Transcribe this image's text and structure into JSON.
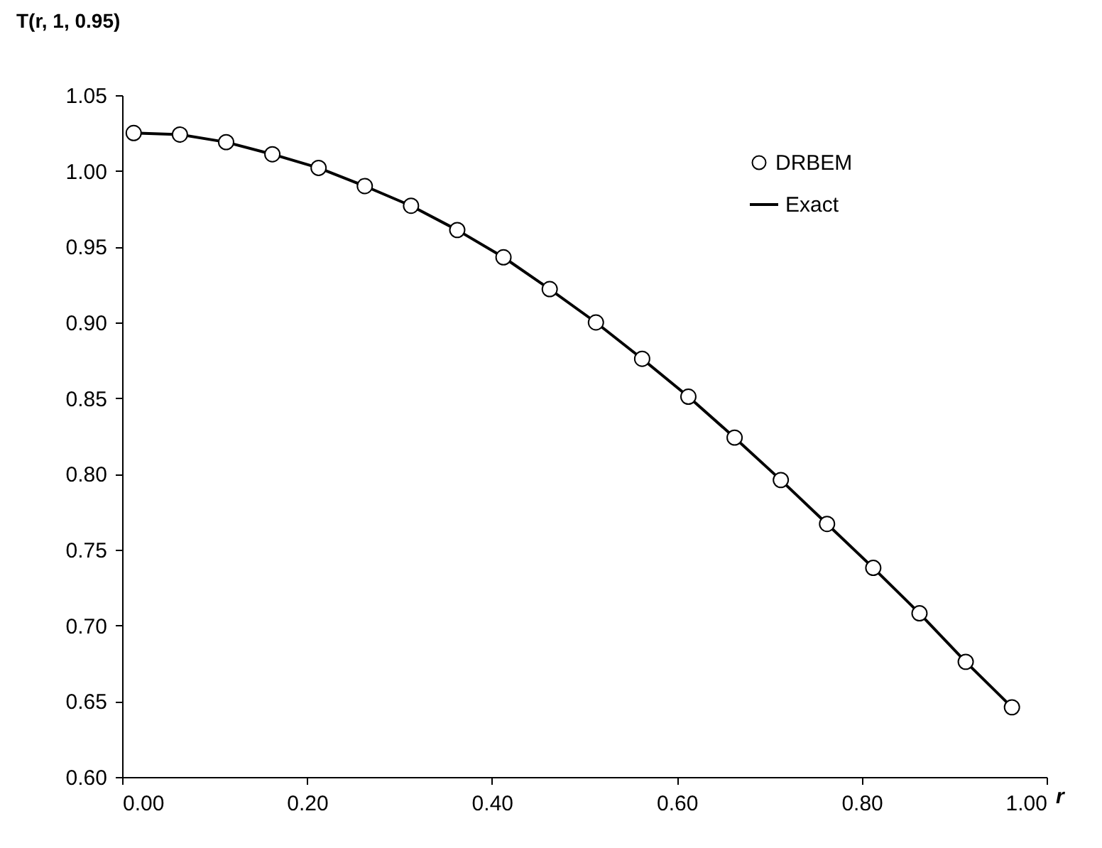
{
  "chart_data": {
    "type": "line",
    "xlabel": "r",
    "ylabel": "T(r, 1, 0.95)",
    "xlim": [
      0,
      1
    ],
    "ylim": [
      0.6,
      1.05
    ],
    "xticks": [
      {
        "value": 0,
        "label": "0.00"
      },
      {
        "value": 0.2,
        "label": "0.20"
      },
      {
        "value": 0.4,
        "label": "0.40"
      },
      {
        "value": 0.6,
        "label": "0.60"
      },
      {
        "value": 0.8,
        "label": "0.80"
      },
      {
        "value": 1,
        "label": "1.00"
      }
    ],
    "yticks": [
      {
        "value": 0.6,
        "label": "0.60"
      },
      {
        "value": 0.65,
        "label": "0.65"
      },
      {
        "value": 0.7,
        "label": "0.70"
      },
      {
        "value": 0.75,
        "label": "0.75"
      },
      {
        "value": 0.8,
        "label": "0.80"
      },
      {
        "value": 0.85,
        "label": "0.85"
      },
      {
        "value": 0.9,
        "label": "0.90"
      },
      {
        "value": 0.95,
        "label": "0.95"
      },
      {
        "value": 1,
        "label": "1.00"
      },
      {
        "value": 1.05,
        "label": "1.05"
      }
    ],
    "x": [
      0.0125,
      0.0625,
      0.1125,
      0.1625,
      0.2125,
      0.2625,
      0.3125,
      0.3625,
      0.4125,
      0.4625,
      0.5125,
      0.5625,
      0.6125,
      0.6625,
      0.7125,
      0.7625,
      0.8125,
      0.8625,
      0.9125,
      0.9625
    ],
    "grid": false,
    "legend": "top right",
    "series": [
      {
        "name": "DRBEM",
        "type": "scatter",
        "marker": "circle",
        "color": "#000000",
        "values": [
          1.025,
          1.024,
          1.019,
          1.011,
          1.002,
          0.99,
          0.977,
          0.961,
          0.943,
          0.922,
          0.9,
          0.876,
          0.851,
          0.824,
          0.796,
          0.767,
          0.738,
          0.708,
          0.676,
          0.646
        ]
      },
      {
        "name": "Exact",
        "line_style": "solid",
        "color": "#000000",
        "values": [
          1.025,
          1.024,
          1.019,
          1.011,
          1.002,
          0.99,
          0.977,
          0.961,
          0.943,
          0.922,
          0.9,
          0.876,
          0.851,
          0.824,
          0.796,
          0.767,
          0.738,
          0.708,
          0.676,
          0.646
        ]
      }
    ]
  }
}
